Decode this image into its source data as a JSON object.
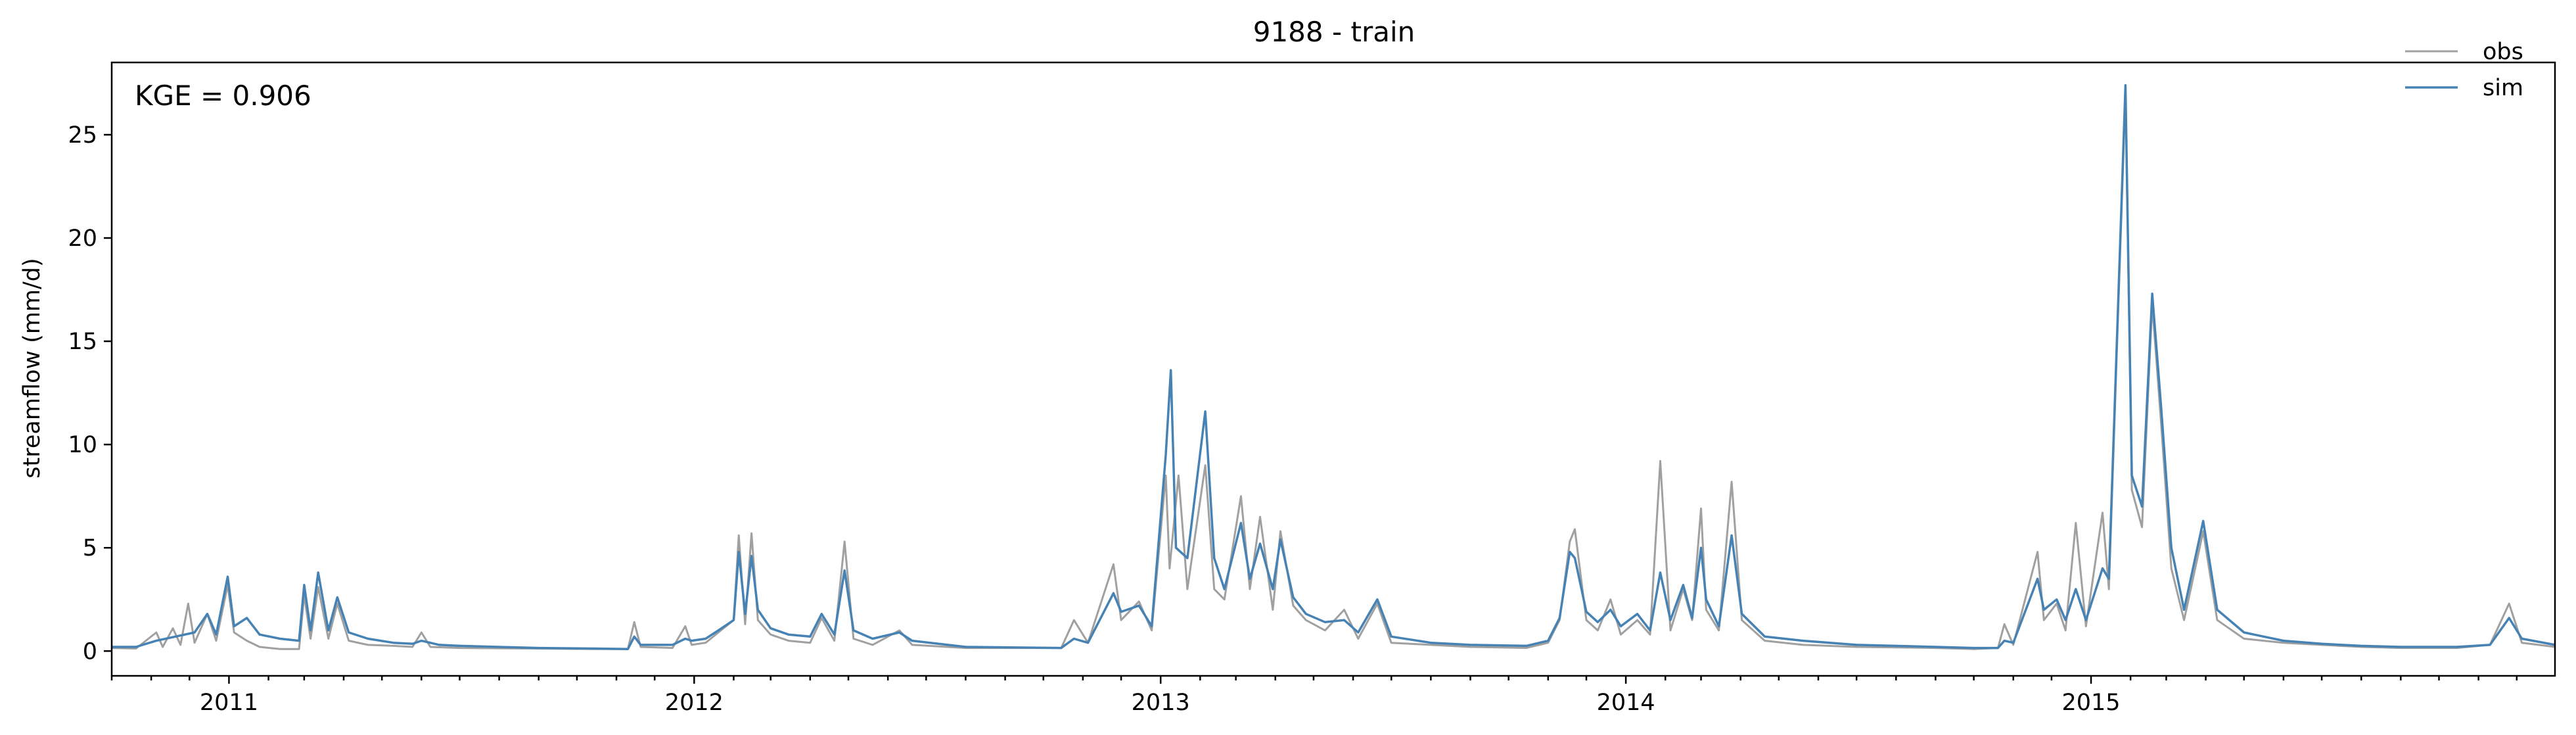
{
  "chart_data": {
    "type": "line",
    "title": "9188 - train",
    "xlabel": "",
    "ylabel": "streamflow (mm/d)",
    "x_range": [
      "2010-10-01",
      "2015-12-31"
    ],
    "ylim": [
      -1.2,
      28.5
    ],
    "y_ticks": [
      0,
      5,
      10,
      15,
      20,
      25
    ],
    "x_ticks": [
      {
        "date": "2011-01-01",
        "label": "2011"
      },
      {
        "date": "2012-01-01",
        "label": "2012"
      },
      {
        "date": "2013-01-01",
        "label": "2013"
      },
      {
        "date": "2014-01-01",
        "label": "2014"
      },
      {
        "date": "2015-01-01",
        "label": "2015"
      }
    ],
    "grid": false,
    "legend_position": "top-right",
    "annotation": "KGE = 0.906",
    "series": [
      {
        "name": "obs",
        "color": "#a0a0a0",
        "points": [
          [
            "2010-10-01",
            0.15
          ],
          [
            "2010-10-20",
            0.12
          ],
          [
            "2010-11-05",
            0.9
          ],
          [
            "2010-11-10",
            0.2
          ],
          [
            "2010-11-18",
            1.1
          ],
          [
            "2010-11-24",
            0.3
          ],
          [
            "2010-11-30",
            2.3
          ],
          [
            "2010-12-05",
            0.4
          ],
          [
            "2010-12-15",
            1.8
          ],
          [
            "2010-12-22",
            0.5
          ],
          [
            "2010-12-31",
            3.2
          ],
          [
            "2011-01-05",
            0.9
          ],
          [
            "2011-01-15",
            0.5
          ],
          [
            "2011-01-25",
            0.2
          ],
          [
            "2011-02-10",
            0.1
          ],
          [
            "2011-02-25",
            0.1
          ],
          [
            "2011-03-01",
            2.7
          ],
          [
            "2011-03-06",
            0.6
          ],
          [
            "2011-03-12",
            3.1
          ],
          [
            "2011-03-20",
            0.6
          ],
          [
            "2011-03-27",
            2.3
          ],
          [
            "2011-04-05",
            0.5
          ],
          [
            "2011-04-20",
            0.3
          ],
          [
            "2011-05-10",
            0.25
          ],
          [
            "2011-05-25",
            0.2
          ],
          [
            "2011-06-01",
            0.9
          ],
          [
            "2011-06-08",
            0.2
          ],
          [
            "2011-07-01",
            0.15
          ],
          [
            "2011-09-01",
            0.12
          ],
          [
            "2011-10-15",
            0.1
          ],
          [
            "2011-11-10",
            0.1
          ],
          [
            "2011-11-15",
            1.4
          ],
          [
            "2011-11-20",
            0.2
          ],
          [
            "2011-12-15",
            0.15
          ],
          [
            "2011-12-25",
            1.2
          ],
          [
            "2011-12-30",
            0.3
          ],
          [
            "2012-01-10",
            0.4
          ],
          [
            "2012-01-20",
            0.9
          ],
          [
            "2012-02-01",
            1.5
          ],
          [
            "2012-02-05",
            5.6
          ],
          [
            "2012-02-10",
            1.3
          ],
          [
            "2012-02-15",
            5.7
          ],
          [
            "2012-02-20",
            1.5
          ],
          [
            "2012-03-01",
            0.8
          ],
          [
            "2012-03-15",
            0.5
          ],
          [
            "2012-04-01",
            0.4
          ],
          [
            "2012-04-10",
            1.6
          ],
          [
            "2012-04-20",
            0.5
          ],
          [
            "2012-04-28",
            5.3
          ],
          [
            "2012-05-05",
            0.6
          ],
          [
            "2012-05-20",
            0.3
          ],
          [
            "2012-06-10",
            1.0
          ],
          [
            "2012-06-20",
            0.3
          ],
          [
            "2012-08-01",
            0.15
          ],
          [
            "2012-10-15",
            0.15
          ],
          [
            "2012-10-25",
            1.5
          ],
          [
            "2012-11-05",
            0.4
          ],
          [
            "2012-11-25",
            4.2
          ],
          [
            "2012-12-01",
            1.5
          ],
          [
            "2012-12-15",
            2.4
          ],
          [
            "2012-12-25",
            1.0
          ],
          [
            "2013-01-05",
            8.5
          ],
          [
            "2013-01-08",
            4.0
          ],
          [
            "2013-01-15",
            8.5
          ],
          [
            "2013-01-22",
            3.0
          ],
          [
            "2013-02-05",
            9.0
          ],
          [
            "2013-02-12",
            3.0
          ],
          [
            "2013-02-20",
            2.5
          ],
          [
            "2013-03-05",
            7.5
          ],
          [
            "2013-03-12",
            3.0
          ],
          [
            "2013-03-20",
            6.5
          ],
          [
            "2013-03-30",
            2.0
          ],
          [
            "2013-04-05",
            5.8
          ],
          [
            "2013-04-15",
            2.2
          ],
          [
            "2013-04-25",
            1.5
          ],
          [
            "2013-05-10",
            1.0
          ],
          [
            "2013-05-25",
            2.0
          ],
          [
            "2013-06-05",
            0.6
          ],
          [
            "2013-06-20",
            2.3
          ],
          [
            "2013-07-01",
            0.4
          ],
          [
            "2013-08-01",
            0.3
          ],
          [
            "2013-09-01",
            0.2
          ],
          [
            "2013-10-15",
            0.15
          ],
          [
            "2013-11-01",
            0.4
          ],
          [
            "2013-11-10",
            1.5
          ],
          [
            "2013-11-18",
            5.3
          ],
          [
            "2013-11-22",
            5.9
          ],
          [
            "2013-12-01",
            1.5
          ],
          [
            "2013-12-10",
            1.0
          ],
          [
            "2013-12-20",
            2.5
          ],
          [
            "2013-12-28",
            0.8
          ],
          [
            "2014-01-10",
            1.5
          ],
          [
            "2014-01-20",
            0.8
          ],
          [
            "2014-01-28",
            9.2
          ],
          [
            "2014-02-05",
            1.0
          ],
          [
            "2014-02-15",
            3.0
          ],
          [
            "2014-02-22",
            1.5
          ],
          [
            "2014-03-01",
            6.9
          ],
          [
            "2014-03-05",
            2.0
          ],
          [
            "2014-03-15",
            1.0
          ],
          [
            "2014-03-25",
            8.2
          ],
          [
            "2014-04-02",
            1.5
          ],
          [
            "2014-04-20",
            0.5
          ],
          [
            "2014-05-20",
            0.3
          ],
          [
            "2014-07-01",
            0.2
          ],
          [
            "2014-09-01",
            0.15
          ],
          [
            "2014-10-01",
            0.1
          ],
          [
            "2014-10-20",
            0.15
          ],
          [
            "2014-10-25",
            1.3
          ],
          [
            "2014-11-01",
            0.3
          ],
          [
            "2014-11-20",
            4.8
          ],
          [
            "2014-11-25",
            1.5
          ],
          [
            "2014-12-05",
            2.3
          ],
          [
            "2014-12-12",
            1.0
          ],
          [
            "2014-12-20",
            6.2
          ],
          [
            "2014-12-28",
            1.2
          ],
          [
            "2015-01-10",
            6.7
          ],
          [
            "2015-01-15",
            3.0
          ],
          [
            "2015-01-28",
            27.0
          ],
          [
            "2015-02-02",
            7.8
          ],
          [
            "2015-02-10",
            6.0
          ],
          [
            "2015-02-18",
            16.8
          ],
          [
            "2015-02-25",
            11.0
          ],
          [
            "2015-03-05",
            4.0
          ],
          [
            "2015-03-15",
            1.5
          ],
          [
            "2015-03-30",
            5.8
          ],
          [
            "2015-04-10",
            1.5
          ],
          [
            "2015-05-01",
            0.6
          ],
          [
            "2015-06-01",
            0.4
          ],
          [
            "2015-07-01",
            0.3
          ],
          [
            "2015-08-01",
            0.2
          ],
          [
            "2015-09-01",
            0.15
          ],
          [
            "2015-10-15",
            0.15
          ],
          [
            "2015-11-10",
            0.3
          ],
          [
            "2015-11-25",
            2.3
          ],
          [
            "2015-12-05",
            0.4
          ],
          [
            "2015-12-31",
            0.2
          ]
        ]
      },
      {
        "name": "sim",
        "color": "#4682b4",
        "points": [
          [
            "2010-10-01",
            0.2
          ],
          [
            "2010-10-20",
            0.2
          ],
          [
            "2010-11-05",
            0.5
          ],
          [
            "2010-11-20",
            0.7
          ],
          [
            "2010-12-05",
            0.9
          ],
          [
            "2010-12-15",
            1.8
          ],
          [
            "2010-12-22",
            0.8
          ],
          [
            "2010-12-31",
            3.6
          ],
          [
            "2011-01-05",
            1.2
          ],
          [
            "2011-01-15",
            1.6
          ],
          [
            "2011-01-25",
            0.8
          ],
          [
            "2011-02-10",
            0.6
          ],
          [
            "2011-02-25",
            0.5
          ],
          [
            "2011-03-01",
            3.2
          ],
          [
            "2011-03-06",
            1.0
          ],
          [
            "2011-03-12",
            3.8
          ],
          [
            "2011-03-20",
            1.0
          ],
          [
            "2011-03-27",
            2.6
          ],
          [
            "2011-04-05",
            0.9
          ],
          [
            "2011-04-20",
            0.6
          ],
          [
            "2011-05-10",
            0.4
          ],
          [
            "2011-05-25",
            0.35
          ],
          [
            "2011-06-01",
            0.5
          ],
          [
            "2011-06-15",
            0.3
          ],
          [
            "2011-07-01",
            0.25
          ],
          [
            "2011-09-01",
            0.15
          ],
          [
            "2011-10-15",
            0.12
          ],
          [
            "2011-11-10",
            0.1
          ],
          [
            "2011-11-15",
            0.7
          ],
          [
            "2011-11-20",
            0.3
          ],
          [
            "2011-12-15",
            0.3
          ],
          [
            "2011-12-25",
            0.6
          ],
          [
            "2011-12-30",
            0.5
          ],
          [
            "2012-01-10",
            0.6
          ],
          [
            "2012-01-20",
            1.0
          ],
          [
            "2012-02-01",
            1.5
          ],
          [
            "2012-02-05",
            4.8
          ],
          [
            "2012-02-10",
            1.8
          ],
          [
            "2012-02-15",
            4.6
          ],
          [
            "2012-02-20",
            2.0
          ],
          [
            "2012-03-01",
            1.1
          ],
          [
            "2012-03-15",
            0.8
          ],
          [
            "2012-04-01",
            0.7
          ],
          [
            "2012-04-10",
            1.8
          ],
          [
            "2012-04-20",
            0.8
          ],
          [
            "2012-04-28",
            3.9
          ],
          [
            "2012-05-05",
            1.0
          ],
          [
            "2012-05-20",
            0.6
          ],
          [
            "2012-06-10",
            0.9
          ],
          [
            "2012-06-20",
            0.5
          ],
          [
            "2012-08-01",
            0.2
          ],
          [
            "2012-10-15",
            0.15
          ],
          [
            "2012-10-25",
            0.6
          ],
          [
            "2012-11-05",
            0.4
          ],
          [
            "2012-11-25",
            2.8
          ],
          [
            "2012-12-01",
            1.9
          ],
          [
            "2012-12-15",
            2.2
          ],
          [
            "2012-12-25",
            1.2
          ],
          [
            "2013-01-05",
            9.5
          ],
          [
            "2013-01-09",
            13.6
          ],
          [
            "2013-01-13",
            5.0
          ],
          [
            "2013-01-22",
            4.5
          ],
          [
            "2013-02-05",
            11.6
          ],
          [
            "2013-02-12",
            4.5
          ],
          [
            "2013-02-20",
            3.0
          ],
          [
            "2013-03-05",
            6.2
          ],
          [
            "2013-03-12",
            3.5
          ],
          [
            "2013-03-20",
            5.2
          ],
          [
            "2013-03-30",
            3.0
          ],
          [
            "2013-04-05",
            5.4
          ],
          [
            "2013-04-15",
            2.6
          ],
          [
            "2013-04-25",
            1.8
          ],
          [
            "2013-05-10",
            1.4
          ],
          [
            "2013-05-25",
            1.5
          ],
          [
            "2013-06-05",
            0.9
          ],
          [
            "2013-06-20",
            2.5
          ],
          [
            "2013-07-01",
            0.7
          ],
          [
            "2013-08-01",
            0.4
          ],
          [
            "2013-09-01",
            0.3
          ],
          [
            "2013-10-15",
            0.25
          ],
          [
            "2013-11-01",
            0.5
          ],
          [
            "2013-11-10",
            1.6
          ],
          [
            "2013-11-18",
            4.8
          ],
          [
            "2013-11-22",
            4.5
          ],
          [
            "2013-12-01",
            1.9
          ],
          [
            "2013-12-10",
            1.4
          ],
          [
            "2013-12-20",
            2.0
          ],
          [
            "2013-12-28",
            1.2
          ],
          [
            "2014-01-10",
            1.8
          ],
          [
            "2014-01-20",
            1.0
          ],
          [
            "2014-01-28",
            3.8
          ],
          [
            "2014-02-05",
            1.5
          ],
          [
            "2014-02-15",
            3.2
          ],
          [
            "2014-02-22",
            1.6
          ],
          [
            "2014-03-01",
            5.0
          ],
          [
            "2014-03-05",
            2.5
          ],
          [
            "2014-03-15",
            1.2
          ],
          [
            "2014-03-25",
            5.6
          ],
          [
            "2014-04-02",
            1.8
          ],
          [
            "2014-04-20",
            0.7
          ],
          [
            "2014-05-20",
            0.5
          ],
          [
            "2014-07-01",
            0.3
          ],
          [
            "2014-09-01",
            0.2
          ],
          [
            "2014-10-01",
            0.15
          ],
          [
            "2014-10-20",
            0.15
          ],
          [
            "2014-10-25",
            0.5
          ],
          [
            "2014-11-01",
            0.4
          ],
          [
            "2014-11-20",
            3.5
          ],
          [
            "2014-11-25",
            2.0
          ],
          [
            "2014-12-05",
            2.5
          ],
          [
            "2014-12-12",
            1.5
          ],
          [
            "2014-12-20",
            3.0
          ],
          [
            "2014-12-28",
            1.5
          ],
          [
            "2015-01-10",
            4.0
          ],
          [
            "2015-01-15",
            3.5
          ],
          [
            "2015-01-28",
            27.4
          ],
          [
            "2015-02-02",
            8.5
          ],
          [
            "2015-02-10",
            7.0
          ],
          [
            "2015-02-18",
            17.3
          ],
          [
            "2015-02-25",
            11.8
          ],
          [
            "2015-03-05",
            5.0
          ],
          [
            "2015-03-15",
            2.0
          ],
          [
            "2015-03-30",
            6.3
          ],
          [
            "2015-04-10",
            2.0
          ],
          [
            "2015-05-01",
            0.9
          ],
          [
            "2015-06-01",
            0.5
          ],
          [
            "2015-07-01",
            0.35
          ],
          [
            "2015-08-01",
            0.25
          ],
          [
            "2015-09-01",
            0.2
          ],
          [
            "2015-10-15",
            0.2
          ],
          [
            "2015-11-10",
            0.3
          ],
          [
            "2015-11-25",
            1.6
          ],
          [
            "2015-12-05",
            0.6
          ],
          [
            "2015-12-31",
            0.3
          ]
        ]
      }
    ]
  }
}
